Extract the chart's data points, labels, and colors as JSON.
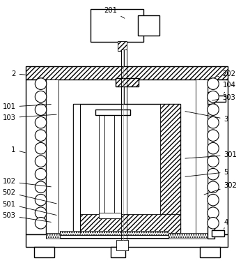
{
  "bg_color": "#ffffff",
  "lw_main": 1.0,
  "lw_thin": 0.6,
  "annotations": [
    [
      "201",
      155,
      10,
      178,
      23,
      "center"
    ],
    [
      "202",
      320,
      103,
      310,
      108,
      "left"
    ],
    [
      "104",
      320,
      120,
      322,
      132,
      "left"
    ],
    [
      "303",
      320,
      138,
      302,
      143,
      "left"
    ],
    [
      "2",
      15,
      103,
      32,
      105,
      "right"
    ],
    [
      "101",
      15,
      152,
      70,
      148,
      "right"
    ],
    [
      "103",
      15,
      168,
      78,
      163,
      "right"
    ],
    [
      "1",
      15,
      215,
      32,
      220,
      "right"
    ],
    [
      "102",
      15,
      262,
      70,
      270,
      "right"
    ],
    [
      "502",
      15,
      278,
      78,
      295,
      "right"
    ],
    [
      "501",
      15,
      295,
      78,
      312,
      "right"
    ],
    [
      "503",
      15,
      312,
      70,
      322,
      "right"
    ],
    [
      "3",
      322,
      170,
      262,
      158,
      "left"
    ],
    [
      "301",
      322,
      223,
      262,
      228,
      "left"
    ],
    [
      "5",
      322,
      248,
      262,
      255,
      "left"
    ],
    [
      "302",
      322,
      268,
      290,
      282,
      "left"
    ],
    [
      "4",
      322,
      322,
      322,
      332,
      "left"
    ]
  ]
}
